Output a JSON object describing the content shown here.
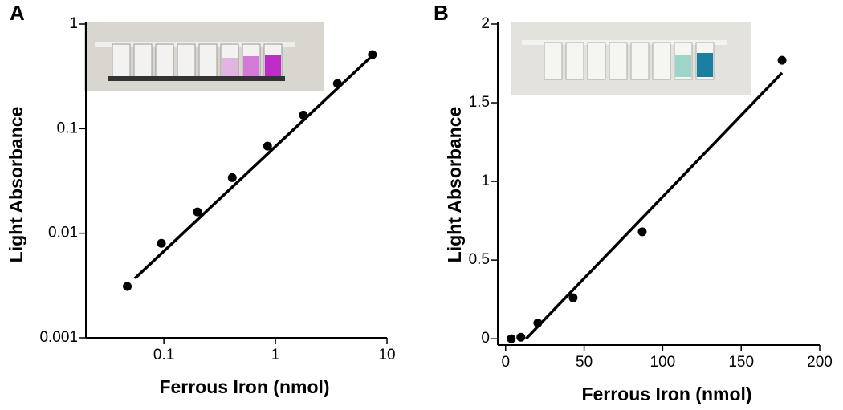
{
  "chart_data": [
    {
      "type": "scatter",
      "panel": "A",
      "xlabel": "Ferrous Iron (nmol)",
      "ylabel": "Light Absorbance",
      "xlog": true,
      "ylog": true,
      "color": "#000000",
      "xlim": [
        0.02,
        10
      ],
      "ylim": [
        0.001,
        1
      ],
      "xticks": [
        0.1,
        1,
        10
      ],
      "yticks": [
        0.001,
        0.01,
        0.1,
        1
      ],
      "x": [
        0.047,
        0.095,
        0.2,
        0.41,
        0.85,
        1.78,
        3.6,
        7.4
      ],
      "values": [
        0.0031,
        0.008,
        0.016,
        0.034,
        0.068,
        0.135,
        0.27,
        0.51
      ],
      "fit": {
        "x": [
          0.055,
          7.4
        ],
        "values": [
          0.0037,
          0.5
        ]
      }
    },
    {
      "type": "scatter",
      "panel": "B",
      "xlabel": "Ferrous Iron (nmol)",
      "ylabel": "Light Absorbance",
      "xlog": false,
      "ylog": false,
      "color": "#000000",
      "xlim": [
        -5,
        200
      ],
      "ylim": [
        -0.04,
        2
      ],
      "xticks": [
        0,
        50,
        100,
        150,
        200
      ],
      "yticks": [
        0,
        0.5,
        1,
        1.5,
        2
      ],
      "x": [
        3.6,
        9.7,
        20.5,
        43,
        87,
        176
      ],
      "values": [
        0,
        0.01,
        0.1,
        0.26,
        0.68,
        1.77
      ],
      "fit": {
        "x": [
          13,
          176
        ],
        "values": [
          0,
          1.69
        ]
      }
    }
  ]
}
